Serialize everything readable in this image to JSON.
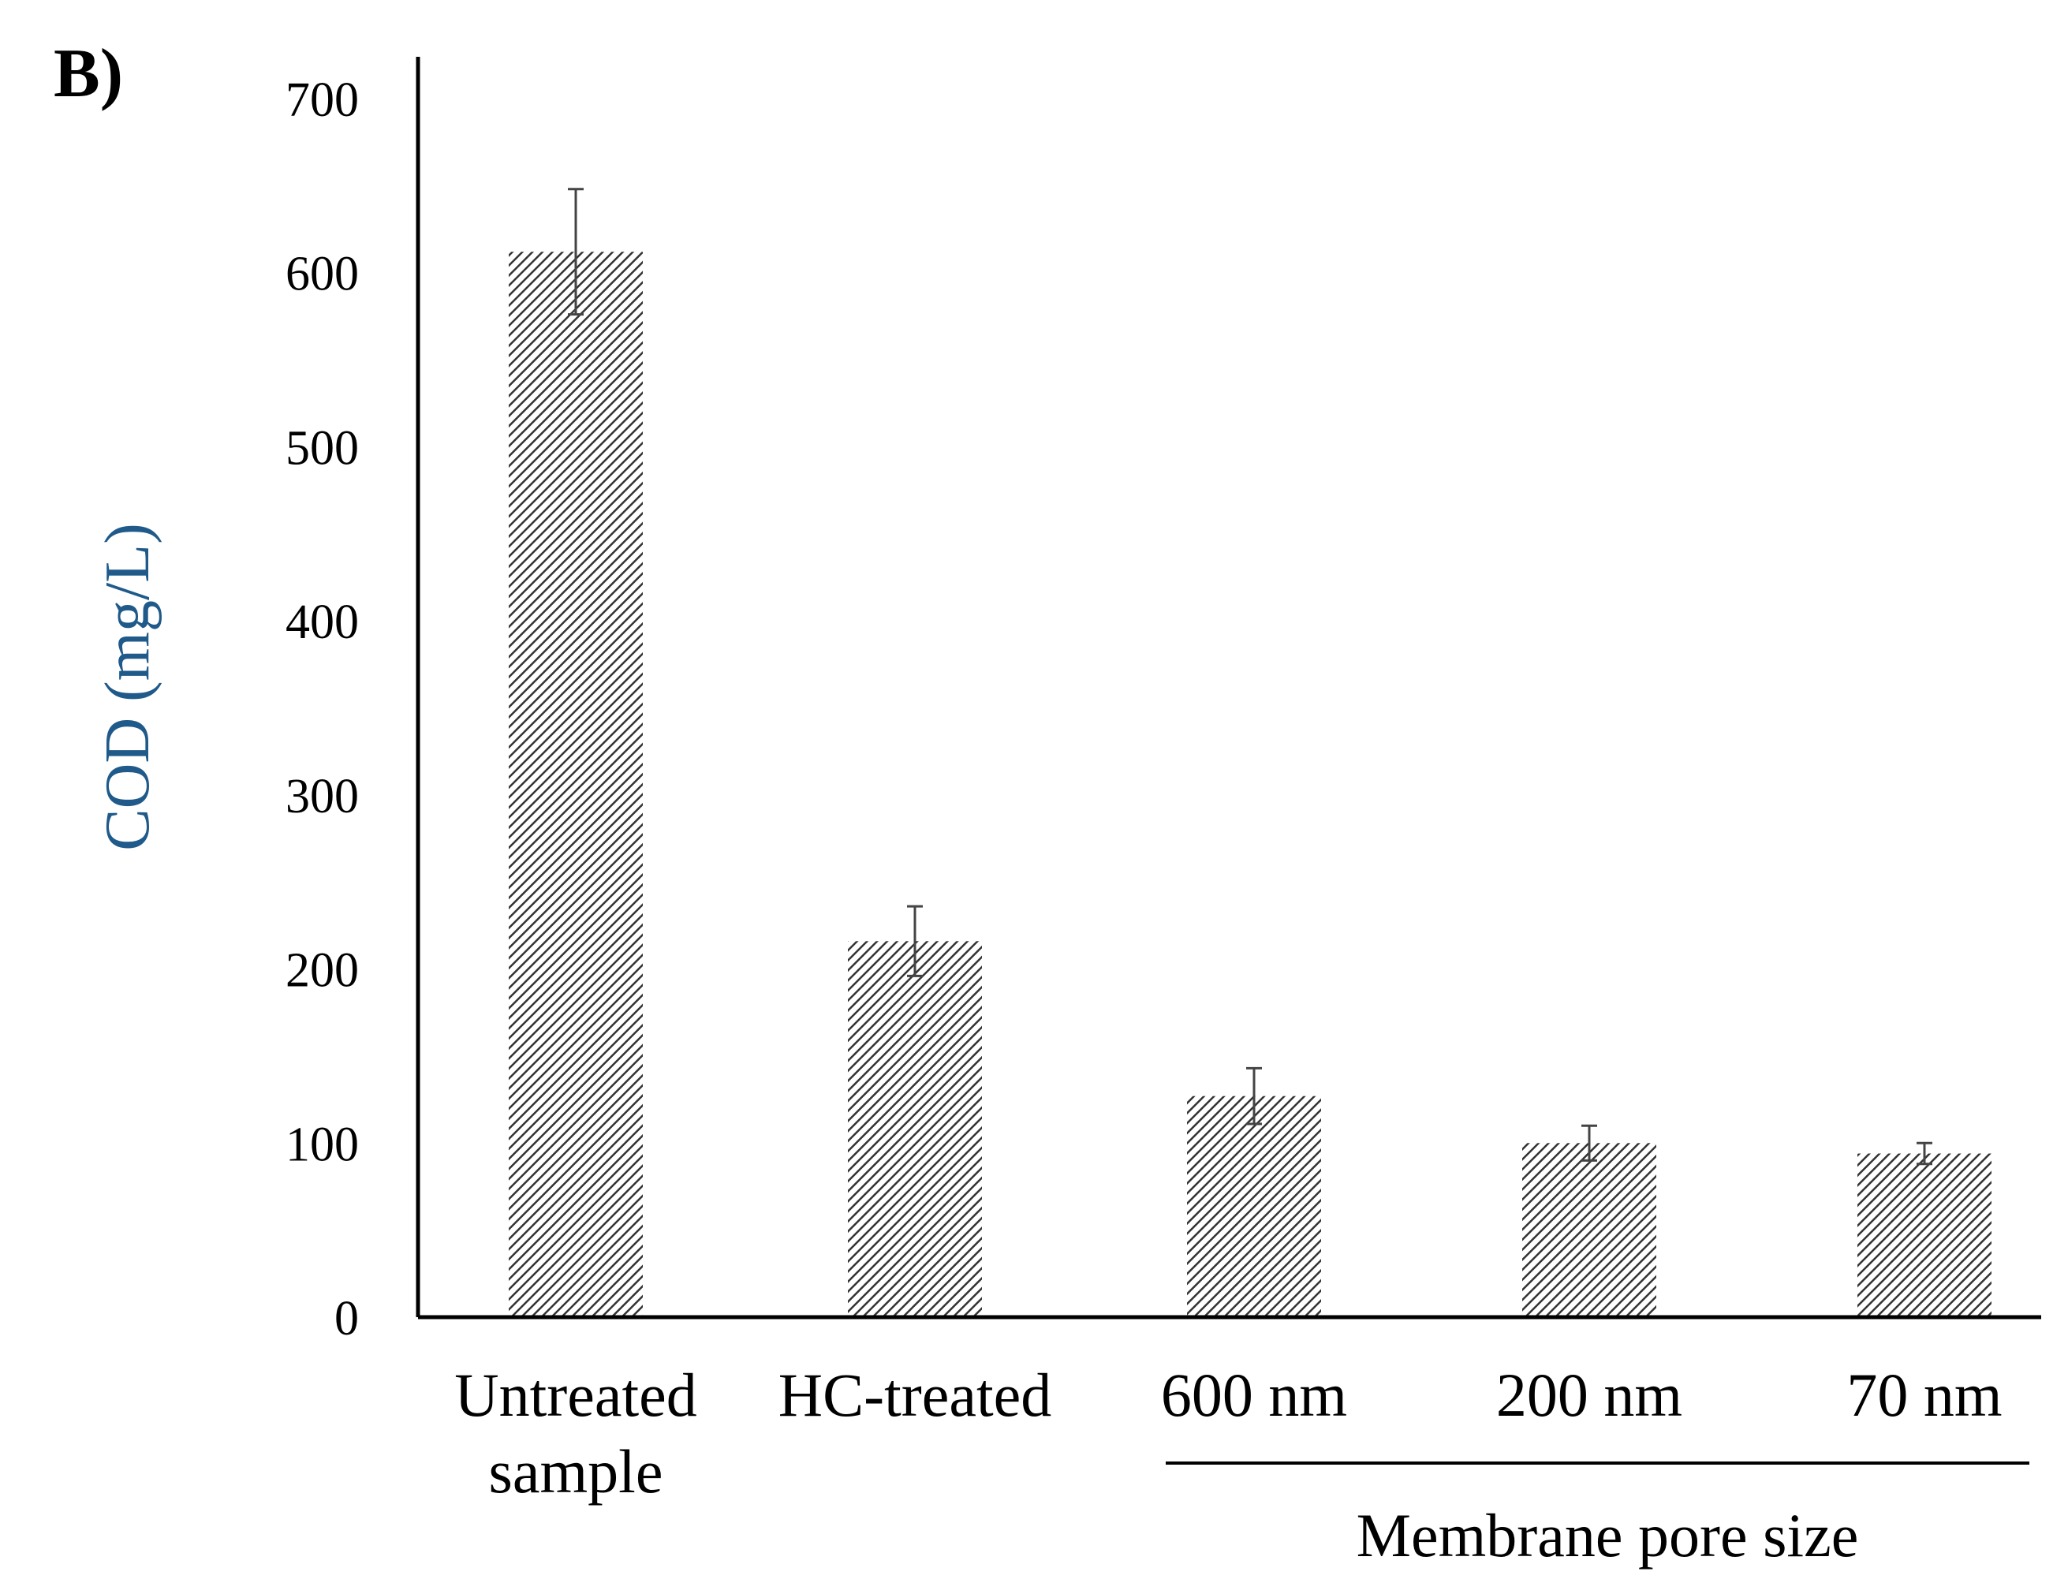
{
  "panel_label": "B)",
  "chart_data": {
    "type": "bar",
    "ylabel": "COD (mg/L)",
    "ylabel_color": "#1f5a8a",
    "ylim": [
      0,
      700
    ],
    "yticks": [
      "0",
      "100",
      "200",
      "300",
      "400",
      "500",
      "600",
      "700"
    ],
    "categories": [
      [
        "Untreated",
        "sample"
      ],
      [
        "HC-treated"
      ],
      [
        "600 nm"
      ],
      [
        "200 nm"
      ],
      [
        "70 nm"
      ]
    ],
    "values": [
      612,
      216,
      127,
      100,
      94
    ],
    "errors": [
      36,
      20,
      16,
      10,
      6
    ],
    "bar_fill": "hatched",
    "grid": false,
    "group": {
      "label": "Membrane pore size",
      "categories": [
        "600 nm",
        "200 nm",
        "70 nm"
      ]
    }
  }
}
